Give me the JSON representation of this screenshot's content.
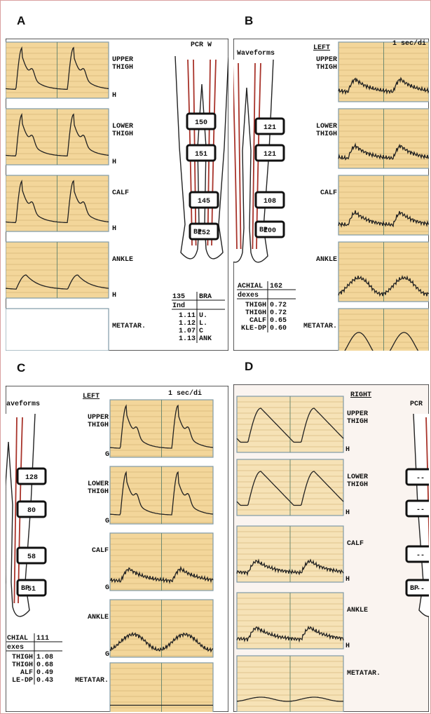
{
  "panels": [
    {
      "letter": "A",
      "header": "PCR W",
      "waveform_labels": [
        [
          "UPPER",
          "THIGH"
        ],
        [
          "LOWER",
          "THIGH"
        ],
        [
          "CALF"
        ],
        [
          "ANKLE"
        ],
        [
          "METATAR."
        ]
      ],
      "channel_marks": [
        "H",
        "H",
        "H",
        "H"
      ],
      "pressures": [
        "150",
        "151",
        "145",
        "152"
      ],
      "cuff_tag": "BP",
      "index_table": {
        "header": [
          "135",
          "BRA"
        ],
        "subheader": "Ind",
        "rows": [
          [
            "1.11",
            "U."
          ],
          [
            "1.12",
            "L."
          ],
          [
            "1.07",
            "C"
          ],
          [
            "1.13",
            "ANK"
          ]
        ]
      }
    },
    {
      "letter": "B",
      "header": "Waveforms",
      "side": "LEFT",
      "time_scale": "1 sec/di",
      "waveform_labels": [
        [
          "UPPER",
          "THIGH"
        ],
        [
          "LOWER",
          "THIGH"
        ],
        [
          "CALF"
        ],
        [
          "ANKLE"
        ],
        [
          "METATAR."
        ]
      ],
      "pressures": [
        "121",
        "121",
        "108",
        "100"
      ],
      "cuff_tag": "BP",
      "index_table": {
        "header": [
          "ACHIAL",
          "162"
        ],
        "subheader": "dexes",
        "rows": [
          [
            "THIGH",
            "0.72"
          ],
          [
            "THIGH",
            "0.72"
          ],
          [
            "CALF",
            "0.65"
          ],
          [
            "KLE-DP",
            "0.60"
          ]
        ]
      }
    },
    {
      "letter": "C",
      "header": "aveforms",
      "side": "LEFT",
      "time_scale": "1 sec/di",
      "waveform_labels": [
        [
          "UPPER",
          "THIGH"
        ],
        [
          "LOWER",
          "THIGH"
        ],
        [
          "CALF"
        ],
        [
          "ANKLE"
        ],
        [
          "METATAR."
        ]
      ],
      "channel_marks": [
        "G",
        "G",
        "G",
        "G"
      ],
      "pressures": [
        "128",
        "80",
        "58",
        "51"
      ],
      "cuff_tag": "BP",
      "index_table": {
        "header": [
          "CHIAL",
          "111"
        ],
        "subheader": "exes",
        "rows": [
          [
            "THIGH",
            "1.08"
          ],
          [
            "THIGH",
            "0.68"
          ],
          [
            "ALF",
            "0.49"
          ],
          [
            "LE-DP",
            "0.43"
          ]
        ]
      }
    },
    {
      "letter": "D",
      "header": "PCR",
      "side": "RIGHT",
      "waveform_labels": [
        [
          "UPPER",
          "THIGH"
        ],
        [
          "LOWER",
          "THIGH"
        ],
        [
          "CALF"
        ],
        [
          "ANKLE"
        ],
        [
          "METATAR."
        ]
      ],
      "channel_marks": [
        "H",
        "H",
        "H",
        "H"
      ],
      "pressures": [
        "--",
        "--",
        "--",
        "--"
      ],
      "cuff_tag": "BP"
    }
  ]
}
